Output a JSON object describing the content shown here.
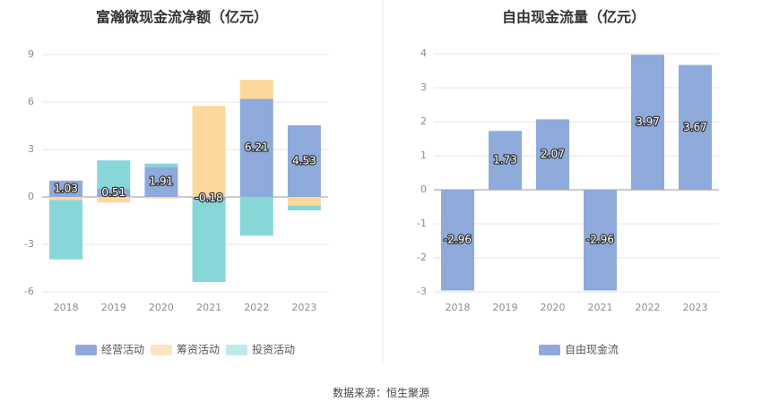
{
  "footer": {
    "source": "数据来源：恒生聚源"
  },
  "chart_data": [
    {
      "type": "bar",
      "stacked": true,
      "title": "富瀚微现金流净额（亿元）",
      "categories": [
        "2018",
        "2019",
        "2020",
        "2021",
        "2022",
        "2023"
      ],
      "ylim": [
        -6,
        9
      ],
      "yticks": [
        -6,
        -3,
        0,
        3,
        6,
        9
      ],
      "grid": true,
      "legend_position": "bottom",
      "series": [
        {
          "name": "经营活动",
          "color": "#8eaadb",
          "values": [
            1.03,
            0.51,
            1.91,
            -0.18,
            6.21,
            4.53
          ],
          "labeled": true
        },
        {
          "name": "筹资活动",
          "color": "#fdd89b",
          "values": [
            -0.2,
            -0.35,
            -0.1,
            5.75,
            1.2,
            -0.55
          ],
          "labeled": false
        },
        {
          "name": "投资活动",
          "color": "#88d7d8",
          "values": [
            -3.75,
            1.8,
            0.2,
            -5.2,
            -2.45,
            -0.3
          ],
          "labeled": false
        }
      ],
      "legend_colors": [
        "#8eaadb",
        "#fde5c0",
        "#bfe9ea"
      ]
    },
    {
      "type": "bar",
      "title": "自由现金流量（亿元）",
      "categories": [
        "2018",
        "2019",
        "2020",
        "2021",
        "2022",
        "2023"
      ],
      "ylim": [
        -3,
        4
      ],
      "yticks": [
        -3,
        -2,
        -1,
        0,
        1,
        2,
        3,
        4
      ],
      "grid": true,
      "legend_position": "bottom",
      "series": [
        {
          "name": "自由现金流",
          "color": "#8eaadb",
          "values": [
            -2.96,
            1.73,
            2.07,
            -2.96,
            3.97,
            3.67
          ],
          "labeled": true
        }
      ],
      "legend_colors": [
        "#8eaadb"
      ]
    }
  ]
}
